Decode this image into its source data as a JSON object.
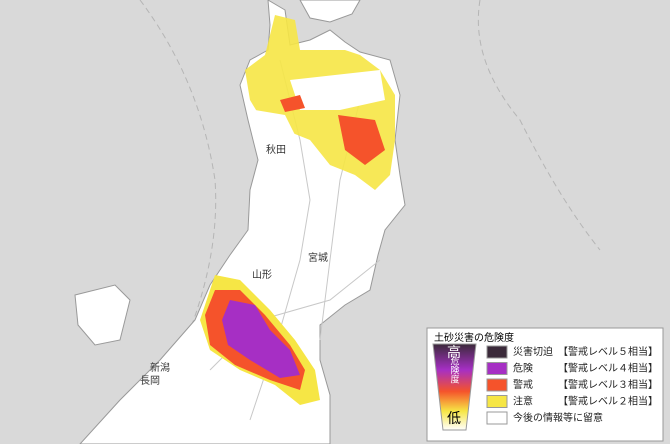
{
  "map_labels": [
    "秋田",
    "山形",
    "宮城",
    "新潟",
    "長岡"
  ],
  "legend": {
    "title": "土砂災害の危険度",
    "high": "高",
    "scale": "危険度",
    "low": "低",
    "items": [
      {
        "label": "災害切迫",
        "level": "【警戒レベル５相当】",
        "color": "#3b2a3a"
      },
      {
        "label": "危険",
        "level": "【警戒レベル４相当】",
        "color": "#a62fc4"
      },
      {
        "label": "警戒",
        "level": "【警戒レベル３相当】",
        "color": "#f5532b"
      },
      {
        "label": "注意",
        "level": "【警戒レベル２相当】",
        "color": "#f6e645"
      },
      {
        "label": "今後の情報等に留意",
        "color": "#ffffff"
      }
    ]
  }
}
